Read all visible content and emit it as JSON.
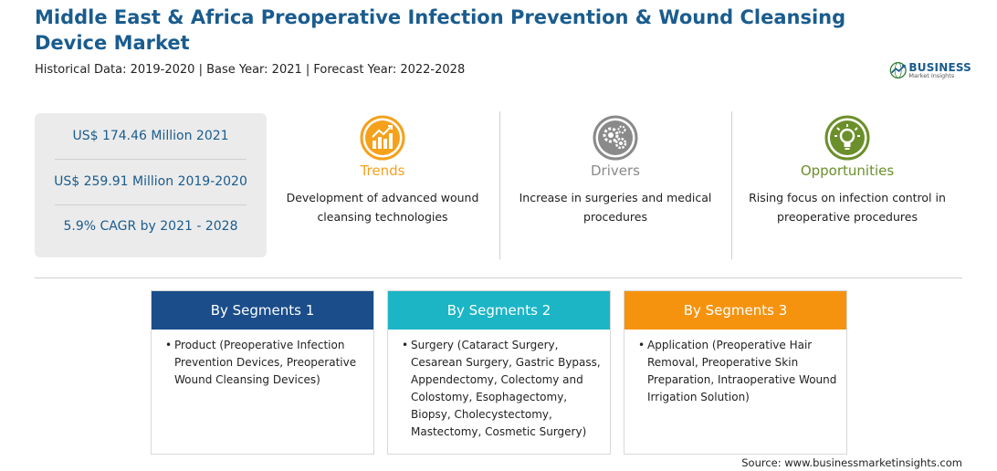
{
  "header": {
    "title": "Middle East & Africa Preoperative Infection Prevention & Wound Cleansing Device Market",
    "subtitle": "Historical Data: 2019-2020 | Base Year: 2021 | Forecast Year: 2022-2028"
  },
  "logo": {
    "line1": "BUSINESS",
    "line2": "Market Insights",
    "icon": "globe-icon"
  },
  "stats": {
    "market_2021": "US$ 174.46 Million 2021",
    "market_hist": "US$ 259.91 Million 2019-2020",
    "cagr": "5.9% CAGR by 2021 - 2028"
  },
  "factors": {
    "trends": {
      "title": "Trends",
      "description": "Development of advanced wound cleansing technologies",
      "icon": "trend-chart-icon",
      "color": "#f5a11c"
    },
    "drivers": {
      "title": "Drivers",
      "description": "Increase in surgeries and medical procedures",
      "icon": "gears-icon",
      "color": "#8a8a8a"
    },
    "opportunities": {
      "title": "Opportunities",
      "description": "Rising focus on infection control in preoperative procedures",
      "icon": "lightbulb-icon",
      "color": "#6b8f2a"
    }
  },
  "segments": [
    {
      "title": "By Segments 1",
      "color": "#1a4d8a",
      "bullet": "•",
      "text": "Product (Preoperative Infection Prevention Devices, Preoperative Wound Cleansing Devices)"
    },
    {
      "title": "By Segments 2",
      "color": "#1bb5c6",
      "bullet": "•",
      "text": "Surgery (Cataract Surgery, Cesarean Surgery, Gastric Bypass, Appendectomy, Colectomy and Colostomy, Esophagectomy, Biopsy, Cholecystectomy, Mastectomy, Cosmetic Surgery)"
    },
    {
      "title": "By Segments 3",
      "color": "#f5930f",
      "bullet": "•",
      "text": "Application (Preoperative Hair Removal, Preoperative Skin Preparation, Intraoperative Wound Irrigation Solution)"
    }
  ],
  "footer": {
    "source": "Source: www.businessmarketinsights.com"
  }
}
